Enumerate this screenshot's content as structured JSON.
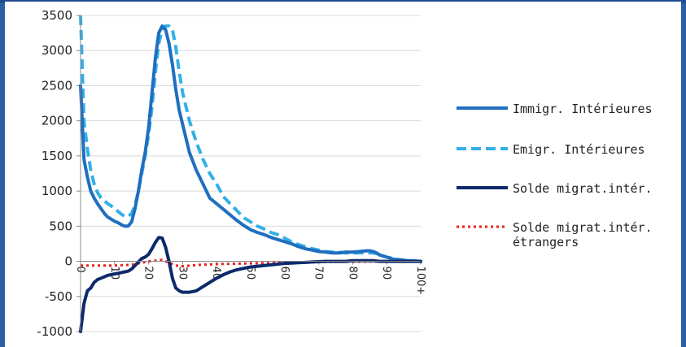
{
  "chart_data": {
    "type": "line",
    "y_ticks": [
      "-1000",
      "-500",
      "0",
      "500",
      "1000",
      "1500",
      "2000",
      "2500",
      "3000",
      "3500"
    ],
    "ylim": [
      -1000,
      3500
    ],
    "x_ticks": [
      "0",
      "10",
      "20",
      "30",
      "40",
      "50",
      "60",
      "70",
      "80",
      "90",
      "100+"
    ],
    "xlim": [
      0,
      100
    ],
    "grid": "horizontal",
    "legend_position": "right",
    "series": [
      {
        "name": "Immigr. Intérieures",
        "color": "#1f6fbf",
        "style": "solid",
        "x": [
          0,
          1,
          2,
          3,
          4,
          5,
          6,
          7,
          8,
          9,
          10,
          11,
          12,
          13,
          14,
          15,
          16,
          17,
          18,
          19,
          20,
          21,
          22,
          23,
          24,
          25,
          26,
          27,
          28,
          29,
          30,
          32,
          34,
          36,
          38,
          40,
          42,
          44,
          46,
          48,
          50,
          52,
          54,
          56,
          58,
          60,
          62,
          64,
          66,
          68,
          70,
          72,
          74,
          76,
          78,
          80,
          82,
          84,
          85,
          86,
          87,
          88,
          90,
          92,
          94,
          96,
          98,
          100
        ],
        "y": [
          2500,
          1450,
          1200,
          1000,
          900,
          820,
          750,
          680,
          630,
          600,
          570,
          550,
          520,
          500,
          500,
          560,
          750,
          1000,
          1300,
          1550,
          1900,
          2400,
          2900,
          3250,
          3350,
          3300,
          3100,
          2800,
          2450,
          2150,
          1950,
          1550,
          1300,
          1100,
          900,
          820,
          740,
          660,
          580,
          510,
          450,
          410,
          380,
          340,
          310,
          280,
          250,
          210,
          180,
          160,
          140,
          130,
          120,
          120,
          130,
          130,
          140,
          150,
          150,
          140,
          120,
          90,
          60,
          30,
          20,
          10,
          5,
          0
        ]
      },
      {
        "name": "Emigr. Intérieures",
        "color": "#33b0e8",
        "style": "dashed",
        "x": [
          0,
          1,
          2,
          3,
          4,
          5,
          6,
          7,
          8,
          9,
          10,
          11,
          12,
          13,
          14,
          15,
          16,
          17,
          18,
          19,
          20,
          21,
          22,
          23,
          24,
          25,
          26,
          27,
          28,
          29,
          30,
          32,
          34,
          36,
          38,
          40,
          42,
          44,
          46,
          48,
          50,
          52,
          54,
          56,
          58,
          60,
          62,
          64,
          66,
          68,
          70,
          72,
          74,
          76,
          78,
          80,
          82,
          84,
          85,
          86,
          87,
          88,
          90,
          92,
          94,
          96,
          98,
          100
        ],
        "y": [
          3500,
          2000,
          1600,
          1300,
          1100,
          980,
          900,
          860,
          820,
          790,
          750,
          710,
          670,
          640,
          640,
          680,
          800,
          1000,
          1250,
          1500,
          1800,
          2200,
          2700,
          3100,
          3300,
          3350,
          3350,
          3300,
          3050,
          2700,
          2400,
          2000,
          1700,
          1450,
          1250,
          1100,
          920,
          820,
          720,
          620,
          560,
          500,
          460,
          410,
          380,
          330,
          280,
          240,
          210,
          180,
          160,
          140,
          130,
          130,
          120,
          120,
          120,
          120,
          120,
          120,
          110,
          90,
          60,
          40,
          20,
          10,
          5,
          0
        ]
      },
      {
        "name": "Solde migrat.intér.",
        "color": "#0c2a6b",
        "style": "solid",
        "x": [
          0,
          1,
          2,
          3,
          4,
          5,
          6,
          7,
          8,
          9,
          10,
          11,
          12,
          13,
          14,
          15,
          16,
          17,
          18,
          19,
          20,
          21,
          22,
          23,
          24,
          25,
          26,
          27,
          28,
          29,
          30,
          32,
          34,
          36,
          38,
          40,
          42,
          44,
          46,
          48,
          50,
          52,
          54,
          56,
          58,
          60,
          62,
          64,
          66,
          68,
          70,
          72,
          74,
          76,
          78,
          80,
          82,
          84,
          86,
          88,
          90,
          92,
          94,
          96,
          98,
          100
        ],
        "y": [
          -1000,
          -600,
          -420,
          -380,
          -300,
          -260,
          -240,
          -220,
          -200,
          -190,
          -180,
          -170,
          -160,
          -150,
          -140,
          -110,
          -60,
          -10,
          40,
          60,
          100,
          180,
          270,
          340,
          330,
          200,
          0,
          -240,
          -380,
          -420,
          -440,
          -440,
          -420,
          -360,
          -300,
          -240,
          -190,
          -150,
          -120,
          -100,
          -80,
          -70,
          -60,
          -50,
          -40,
          -30,
          -25,
          -20,
          -15,
          -10,
          -5,
          0,
          0,
          0,
          0,
          10,
          10,
          10,
          10,
          0,
          0,
          0,
          0,
          0,
          0,
          0
        ]
      },
      {
        "name": "Solde migrat.intér. étrangers",
        "color": "#e8201b",
        "style": "dotted",
        "x": [
          0,
          5,
          10,
          15,
          18,
          20,
          22,
          24,
          26,
          28,
          30,
          35,
          40,
          50,
          60,
          70,
          80,
          90,
          100
        ],
        "y": [
          -60,
          -60,
          -60,
          -50,
          -20,
          0,
          10,
          20,
          -20,
          -60,
          -70,
          -50,
          -40,
          -30,
          -20,
          -10,
          -5,
          0,
          0
        ]
      }
    ]
  },
  "legend": [
    {
      "label": "Immigr. Intérieures"
    },
    {
      "label": "Emigr. Intérieures"
    },
    {
      "label": "Solde migrat.intér."
    },
    {
      "label_line1": "Solde migrat.intér.",
      "label_line2": "étrangers"
    }
  ]
}
